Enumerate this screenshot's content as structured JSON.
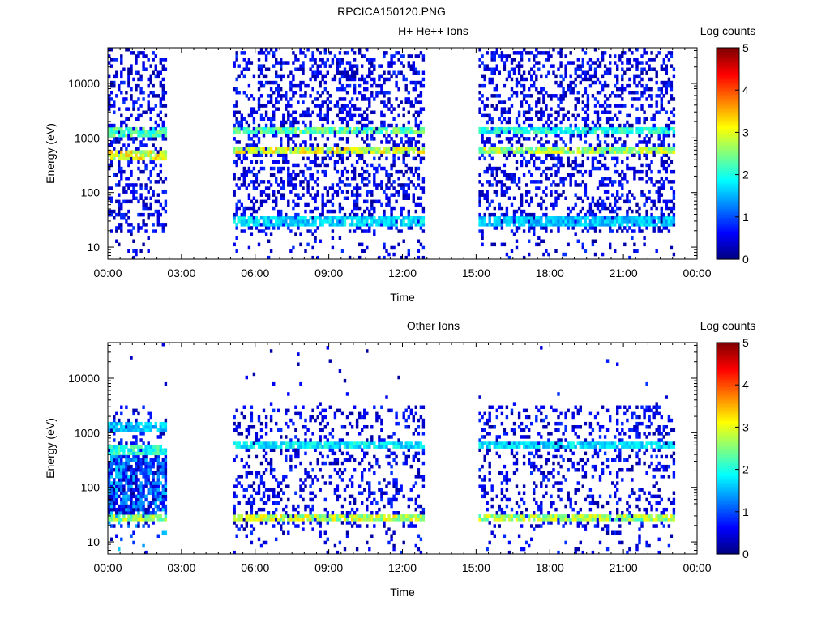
{
  "figure_title": "RPCICA150120.PNG",
  "chart_data": [
    {
      "type": "heatmap",
      "title": "H+ He++ Ions",
      "xlabel": "Time",
      "ylabel": "Energy (eV)",
      "x_ticks": [
        "00:00",
        "03:00",
        "06:00",
        "09:00",
        "12:00",
        "15:00",
        "18:00",
        "21:00",
        "00:00"
      ],
      "xlim_hours": [
        0,
        24
      ],
      "y_scale": "log",
      "y_ticks": [
        10,
        100,
        1000,
        10000
      ],
      "ylim": [
        6,
        45000
      ],
      "colorbar": {
        "label": "Log counts",
        "ticks": [
          0,
          1,
          2,
          3,
          4,
          5
        ],
        "range": [
          0,
          5
        ],
        "colormap": "jet"
      },
      "data_intervals_hours": [
        [
          0.0,
          2.4
        ],
        [
          5.1,
          12.8
        ],
        [
          15.1,
          23.1
        ]
      ],
      "bands": [
        {
          "energy_eV": 1300,
          "level": 2.2,
          "interval_index": 0
        },
        {
          "energy_eV": 480,
          "level": 3.0,
          "interval_index": 0
        },
        {
          "energy_eV": 1400,
          "level": 2.3,
          "interval_index": 1
        },
        {
          "energy_eV": 600,
          "level": 2.9,
          "interval_index": 1
        },
        {
          "energy_eV": 30,
          "level": 1.7,
          "interval_index": 1
        },
        {
          "energy_eV": 1350,
          "level": 2.0,
          "interval_index": 2
        },
        {
          "energy_eV": 620,
          "level": 2.7,
          "interval_index": 2
        },
        {
          "energy_eV": 30,
          "level": 1.6,
          "interval_index": 2
        }
      ],
      "grid": false,
      "legend": "colorbar right"
    },
    {
      "type": "heatmap",
      "title": "Other Ions",
      "xlabel": "Time",
      "ylabel": "Energy (eV)",
      "x_ticks": [
        "00:00",
        "03:00",
        "06:00",
        "09:00",
        "12:00",
        "15:00",
        "18:00",
        "21:00",
        "00:00"
      ],
      "xlim_hours": [
        0,
        24
      ],
      "y_scale": "log",
      "y_ticks": [
        10,
        100,
        1000,
        10000
      ],
      "ylim": [
        6,
        45000
      ],
      "colorbar": {
        "label": "Log counts",
        "ticks": [
          0,
          1,
          2,
          3,
          4,
          5
        ],
        "range": [
          0,
          5
        ],
        "colormap": "jet"
      },
      "data_intervals_hours": [
        [
          0.0,
          2.4
        ],
        [
          5.1,
          12.8
        ],
        [
          15.1,
          23.1
        ]
      ],
      "bands": [
        {
          "energy_eV": 1300,
          "level": 1.6,
          "interval_index": 0
        },
        {
          "energy_eV": 480,
          "level": 2.0,
          "interval_index": 0
        },
        {
          "energy_eV": 28,
          "level": 2.6,
          "interval_index": 0
        },
        {
          "energy_eV": 600,
          "level": 1.8,
          "interval_index": 1
        },
        {
          "energy_eV": 28,
          "level": 2.8,
          "interval_index": 1
        },
        {
          "energy_eV": 600,
          "level": 1.7,
          "interval_index": 2
        },
        {
          "energy_eV": 28,
          "level": 2.7,
          "interval_index": 2
        }
      ],
      "grid": false,
      "legend": "colorbar right"
    }
  ]
}
